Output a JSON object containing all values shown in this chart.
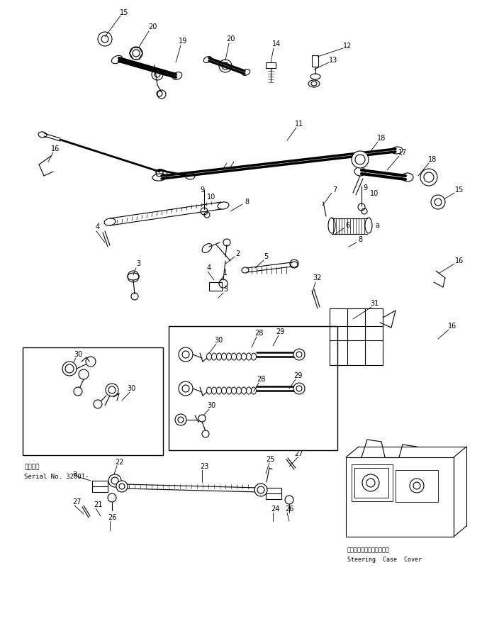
{
  "bg_color": "#ffffff",
  "line_color": "#000000",
  "fig_width": 6.8,
  "fig_height": 8.9,
  "dpi": 100,
  "serial_text_ja": "適用号第",
  "serial_text_en": "Serial No. 32001-",
  "steering_case_ja": "ステアリングケースカバー",
  "steering_case_en": "Steering  Case  Cover"
}
